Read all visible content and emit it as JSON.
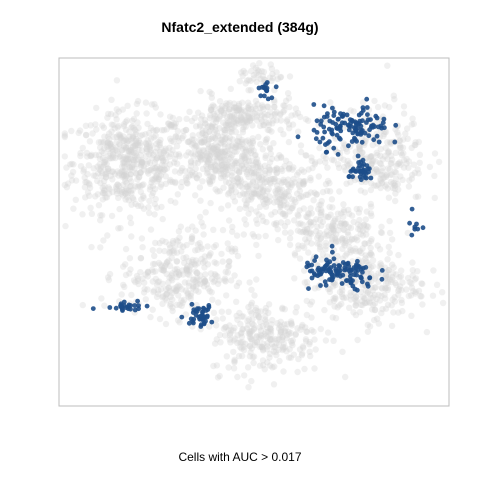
{
  "chart_data": {
    "type": "scatter",
    "title": "Nfatc2_extended (384g)",
    "xlabel": "Cells with AUC > 0.017",
    "ylabel": "",
    "grid": false,
    "legend": "none",
    "colors": {
      "background_cells": "#d3d3d3",
      "active_cells": "#1d4e89",
      "frame": "#bdbdbd"
    },
    "series": [
      {
        "name": "",
        "color": "#d3d3d3",
        "note_clusters": [
          {
            "x": 0.18,
            "y": 0.7,
            "sx": 0.12,
            "sy": 0.12,
            "n": 520
          },
          {
            "x": 0.4,
            "y": 0.72,
            "sx": 0.1,
            "sy": 0.08,
            "n": 300
          },
          {
            "x": 0.55,
            "y": 0.62,
            "sx": 0.14,
            "sy": 0.1,
            "n": 340
          },
          {
            "x": 0.47,
            "y": 0.83,
            "sx": 0.12,
            "sy": 0.05,
            "n": 220
          },
          {
            "x": 0.3,
            "y": 0.38,
            "sx": 0.12,
            "sy": 0.1,
            "n": 300
          },
          {
            "x": 0.53,
            "y": 0.2,
            "sx": 0.12,
            "sy": 0.09,
            "n": 260
          },
          {
            "x": 0.78,
            "y": 0.35,
            "sx": 0.12,
            "sy": 0.09,
            "n": 280
          },
          {
            "x": 0.82,
            "y": 0.72,
            "sx": 0.1,
            "sy": 0.12,
            "n": 260
          },
          {
            "x": 0.7,
            "y": 0.5,
            "sx": 0.1,
            "sy": 0.06,
            "n": 160
          },
          {
            "x": 0.52,
            "y": 0.95,
            "sx": 0.05,
            "sy": 0.03,
            "n": 40
          }
        ]
      },
      {
        "name": "",
        "color": "#1d4e89",
        "note_clusters": [
          {
            "x": 0.75,
            "y": 0.8,
            "sx": 0.08,
            "sy": 0.05,
            "n": 120
          },
          {
            "x": 0.78,
            "y": 0.67,
            "sx": 0.03,
            "sy": 0.02,
            "n": 35
          },
          {
            "x": 0.72,
            "y": 0.38,
            "sx": 0.08,
            "sy": 0.04,
            "n": 110
          },
          {
            "x": 0.36,
            "y": 0.26,
            "sx": 0.03,
            "sy": 0.025,
            "n": 40
          },
          {
            "x": 0.17,
            "y": 0.29,
            "sx": 0.05,
            "sy": 0.015,
            "n": 25
          },
          {
            "x": 0.53,
            "y": 0.91,
            "sx": 0.015,
            "sy": 0.02,
            "n": 15
          },
          {
            "x": 0.91,
            "y": 0.52,
            "sx": 0.015,
            "sy": 0.03,
            "n": 8
          }
        ]
      }
    ]
  }
}
